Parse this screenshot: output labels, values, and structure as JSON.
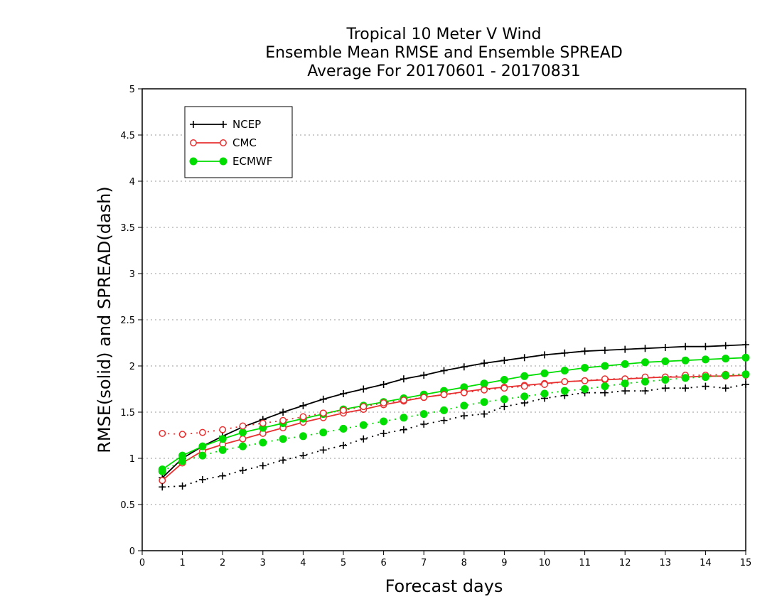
{
  "chart_data": {
    "type": "line",
    "title": [
      "Tropical 10 Meter V Wind",
      "Ensemble Mean RMSE and Ensemble SPREAD",
      "Average For 20170601 - 20170831"
    ],
    "xlabel": "Forecast days",
    "ylabel": "RMSE(solid) and SPREAD(dash)",
    "xlim": [
      0,
      15
    ],
    "ylim": [
      0,
      5
    ],
    "xticks": [
      "0",
      "1",
      "2",
      "3",
      "4",
      "5",
      "6",
      "7",
      "8",
      "9",
      "10",
      "11",
      "12",
      "13",
      "14",
      "15"
    ],
    "yticks": [
      "0",
      "0.5",
      "1",
      "1.5",
      "2",
      "2.5",
      "3",
      "3.5",
      "4",
      "4.5",
      "5"
    ],
    "grid": "horizontal dotted",
    "legend_position": "top-left",
    "x": [
      0.5,
      1,
      1.5,
      2,
      2.5,
      3,
      3.5,
      4,
      4.5,
      5,
      5.5,
      6,
      6.5,
      7,
      7.5,
      8,
      8.5,
      9,
      9.5,
      10,
      10.5,
      11,
      11.5,
      12,
      12.5,
      13,
      13.5,
      14,
      14.5,
      15
    ],
    "series": [
      {
        "name": "NCEP",
        "kind": "rmse",
        "color": "#000000",
        "marker": "plus",
        "values": [
          0.79,
          1.0,
          1.13,
          1.24,
          1.34,
          1.42,
          1.5,
          1.57,
          1.64,
          1.7,
          1.75,
          1.8,
          1.86,
          1.9,
          1.95,
          1.99,
          2.03,
          2.06,
          2.09,
          2.12,
          2.14,
          2.16,
          2.17,
          2.18,
          2.19,
          2.2,
          2.21,
          2.21,
          2.22,
          2.23
        ]
      },
      {
        "name": "CMC",
        "kind": "rmse",
        "color": "#e83030",
        "marker": "open-circle",
        "values": [
          0.76,
          0.95,
          1.08,
          1.15,
          1.21,
          1.27,
          1.33,
          1.39,
          1.44,
          1.49,
          1.53,
          1.58,
          1.62,
          1.66,
          1.69,
          1.72,
          1.75,
          1.77,
          1.79,
          1.81,
          1.83,
          1.84,
          1.85,
          1.86,
          1.87,
          1.88,
          1.88,
          1.89,
          1.89,
          1.9
        ]
      },
      {
        "name": "ECMWF",
        "kind": "rmse",
        "color": "#00dd00",
        "marker": "filled-circle",
        "values": [
          0.88,
          1.03,
          1.13,
          1.21,
          1.28,
          1.33,
          1.38,
          1.43,
          1.48,
          1.53,
          1.57,
          1.61,
          1.65,
          1.69,
          1.73,
          1.77,
          1.81,
          1.85,
          1.89,
          1.92,
          1.95,
          1.98,
          2.0,
          2.02,
          2.04,
          2.05,
          2.06,
          2.07,
          2.08,
          2.09
        ]
      },
      {
        "name": "NCEP",
        "kind": "spread",
        "color": "#000000",
        "marker": "plus",
        "values": [
          0.69,
          0.7,
          0.77,
          0.81,
          0.87,
          0.92,
          0.98,
          1.03,
          1.09,
          1.14,
          1.21,
          1.27,
          1.31,
          1.37,
          1.41,
          1.46,
          1.48,
          1.56,
          1.6,
          1.65,
          1.68,
          1.71,
          1.71,
          1.73,
          1.73,
          1.76,
          1.76,
          1.78,
          1.76,
          1.8
        ]
      },
      {
        "name": "CMC",
        "kind": "spread",
        "color": "#e83030",
        "marker": "open-circle",
        "values": [
          1.27,
          1.26,
          1.28,
          1.31,
          1.35,
          1.38,
          1.41,
          1.45,
          1.49,
          1.52,
          1.56,
          1.6,
          1.63,
          1.66,
          1.69,
          1.71,
          1.74,
          1.76,
          1.78,
          1.8,
          1.83,
          1.84,
          1.86,
          1.86,
          1.88,
          1.88,
          1.9,
          1.9,
          1.91,
          1.91
        ]
      },
      {
        "name": "ECMWF",
        "kind": "spread",
        "color": "#00dd00",
        "marker": "filled-circle",
        "values": [
          0.86,
          0.97,
          1.03,
          1.09,
          1.13,
          1.17,
          1.21,
          1.24,
          1.28,
          1.32,
          1.36,
          1.4,
          1.44,
          1.48,
          1.52,
          1.57,
          1.61,
          1.64,
          1.67,
          1.7,
          1.73,
          1.75,
          1.78,
          1.81,
          1.83,
          1.85,
          1.87,
          1.88,
          1.9,
          1.91
        ]
      }
    ]
  }
}
